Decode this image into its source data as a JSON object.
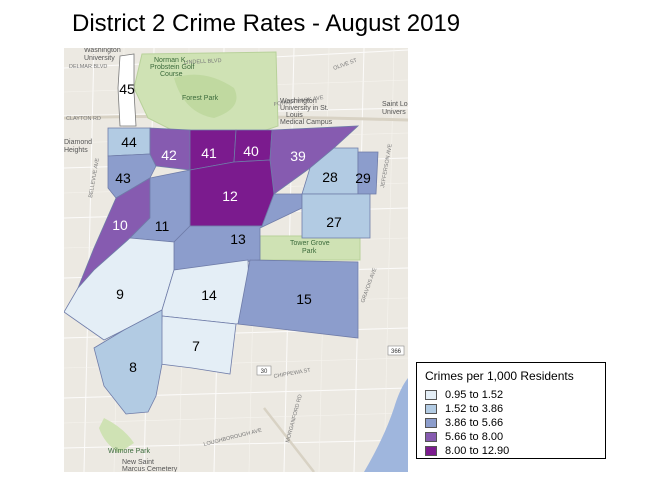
{
  "title": "District 2 Crime Rates - August 2019",
  "legend": {
    "title": "Crimes per 1,000 Residents",
    "classes": [
      {
        "label": "0.95 to 1.52",
        "color": "#e4eef6"
      },
      {
        "label": "1.52 to 3.86",
        "color": "#b2cbe3"
      },
      {
        "label": "3.86 to 5.66",
        "color": "#8c9dcc"
      },
      {
        "label": "5.66 to 8.00",
        "color": "#865bb0"
      },
      {
        "label": "8.00 to 12.90",
        "color": "#7b1b8e"
      }
    ]
  },
  "neighborhoods": [
    {
      "id": "45",
      "label": "45",
      "class": null
    },
    {
      "id": "44",
      "label": "44",
      "class": 1
    },
    {
      "id": "43",
      "label": "43",
      "class": 2
    },
    {
      "id": "42",
      "label": "42",
      "class": 3
    },
    {
      "id": "41",
      "label": "41",
      "class": 4
    },
    {
      "id": "40",
      "label": "40",
      "class": 4
    },
    {
      "id": "39",
      "label": "39",
      "class": 3
    },
    {
      "id": "28",
      "label": "28",
      "class": 1
    },
    {
      "id": "29",
      "label": "29",
      "class": 2
    },
    {
      "id": "12",
      "label": "12",
      "class": 4
    },
    {
      "id": "10",
      "label": "10",
      "class": 3
    },
    {
      "id": "11",
      "label": "11",
      "class": 2
    },
    {
      "id": "13",
      "label": "13",
      "class": 2
    },
    {
      "id": "27",
      "label": "27",
      "class": 1
    },
    {
      "id": "9",
      "label": "9",
      "class": 0
    },
    {
      "id": "14",
      "label": "14",
      "class": 0
    },
    {
      "id": "15",
      "label": "15",
      "class": 2
    },
    {
      "id": "7",
      "label": "7",
      "class": 0
    },
    {
      "id": "8",
      "label": "8",
      "class": 1
    }
  ],
  "basemap": {
    "places": [
      "Forest Park",
      "Washington University in St. Louis Medical Campus",
      "Tower Grove Park",
      "Wilmore Park",
      "New Saint Marcus Cemetery",
      "Norman K. Probstein Golf Course",
      "Washington University",
      "Saint Lo University",
      "Diamond Heights"
    ],
    "streets": [
      "FOREST PARK AVE",
      "LINDELL BLVD",
      "CLAYTON RD",
      "BELLEVUE AVE",
      "CHIPPEWA ST",
      "LOUGHBOROUGH AVE",
      "ARSENAL ST",
      "GRAVOIS AVE",
      "MORGANFORD RD",
      "JEFFERSON AVE",
      "OLIVE ST",
      "DELMAR BLVD"
    ],
    "route_shield": "30",
    "route_shield_2": "366"
  }
}
